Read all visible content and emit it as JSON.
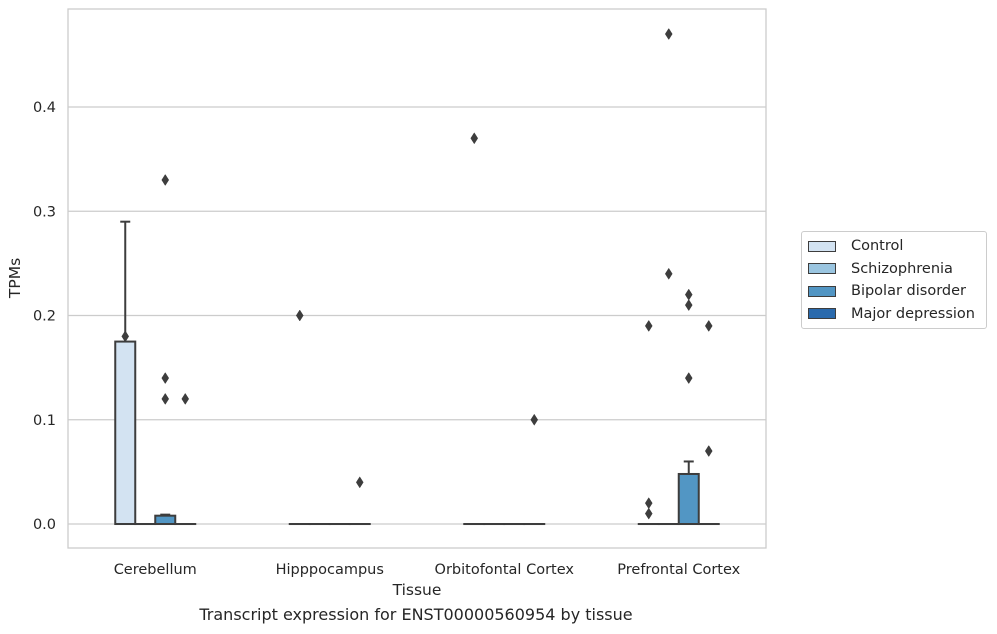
{
  "chart_data": {
    "type": "box",
    "xlabel": "Tissue",
    "ylabel": "TPMs",
    "caption": "Transcript expression for ENST00000560954 by tissue",
    "categories": [
      "Cerebellum",
      "Hipppocampus",
      "Orbitofontal Cortex",
      "Prefrontal Cortex"
    ],
    "ylim": [
      -0.023,
      0.494
    ],
    "yticks": [
      0.0,
      0.1,
      0.2,
      0.3,
      0.4
    ],
    "ytick_labels": [
      "0.0",
      "0.1",
      "0.2",
      "0.3",
      "0.4"
    ],
    "grid": "horizontal",
    "legend_position": "right",
    "series": [
      {
        "name": "Control",
        "color": "#d3e3f2",
        "boxes": [
          {
            "q1": 0.0,
            "median": 0.0,
            "q3": 0.175,
            "whisker_low": 0.0,
            "whisker_high": 0.29,
            "outliers": [
              0.18
            ]
          },
          {
            "q1": 0.0,
            "median": 0.0,
            "q3": 0.0,
            "whisker_low": 0.0,
            "whisker_high": 0.0,
            "outliers": [
              0.2
            ]
          },
          {
            "q1": 0.0,
            "median": 0.0,
            "q3": 0.0,
            "whisker_low": 0.0,
            "whisker_high": 0.0,
            "outliers": [
              0.37
            ]
          },
          {
            "q1": 0.0,
            "median": 0.0,
            "q3": 0.0,
            "whisker_low": 0.0,
            "whisker_high": 0.0,
            "outliers": [
              0.19,
              0.02,
              0.01
            ]
          }
        ]
      },
      {
        "name": "Schizophrenia",
        "color": "#9ac5e0",
        "boxes": [
          {
            "q1": 0.0,
            "median": 0.0,
            "q3": 0.0,
            "whisker_low": 0.0,
            "whisker_high": 0.0,
            "outliers": []
          },
          {
            "q1": 0.0,
            "median": 0.0,
            "q3": 0.0,
            "whisker_low": 0.0,
            "whisker_high": 0.0,
            "outliers": []
          },
          {
            "q1": 0.0,
            "median": 0.0,
            "q3": 0.0,
            "whisker_low": 0.0,
            "whisker_high": 0.0,
            "outliers": []
          },
          {
            "q1": 0.0,
            "median": 0.0,
            "q3": 0.0,
            "whisker_low": 0.0,
            "whisker_high": 0.0,
            "outliers": [
              0.47,
              0.24
            ]
          }
        ]
      },
      {
        "name": "Bipolar disorder",
        "color": "#5296c4",
        "boxes": [
          {
            "q1": 0.0,
            "median": 0.0,
            "q3": 0.008,
            "whisker_low": 0.0,
            "whisker_high": 0.009,
            "outliers": [
              0.33,
              0.14,
              0.12
            ]
          },
          {
            "q1": 0.0,
            "median": 0.0,
            "q3": 0.0,
            "whisker_low": 0.0,
            "whisker_high": 0.0,
            "outliers": []
          },
          {
            "q1": 0.0,
            "median": 0.0,
            "q3": 0.0,
            "whisker_low": 0.0,
            "whisker_high": 0.0,
            "outliers": []
          },
          {
            "q1": 0.0,
            "median": 0.0,
            "q3": 0.048,
            "whisker_low": 0.0,
            "whisker_high": 0.06,
            "outliers": [
              0.22,
              0.21,
              0.14
            ]
          }
        ]
      },
      {
        "name": "Major depression",
        "color": "#2a6aad",
        "boxes": [
          {
            "q1": 0.0,
            "median": 0.0,
            "q3": 0.0,
            "whisker_low": 0.0,
            "whisker_high": 0.0,
            "outliers": [
              0.12
            ]
          },
          {
            "q1": 0.0,
            "median": 0.0,
            "q3": 0.0,
            "whisker_low": 0.0,
            "whisker_high": 0.0,
            "outliers": [
              0.04
            ]
          },
          {
            "q1": 0.0,
            "median": 0.0,
            "q3": 0.0,
            "whisker_low": 0.0,
            "whisker_high": 0.0,
            "outliers": [
              0.1
            ]
          },
          {
            "q1": 0.0,
            "median": 0.0,
            "q3": 0.0,
            "whisker_low": 0.0,
            "whisker_high": 0.0,
            "outliers": [
              0.19,
              0.07
            ]
          }
        ]
      }
    ]
  }
}
